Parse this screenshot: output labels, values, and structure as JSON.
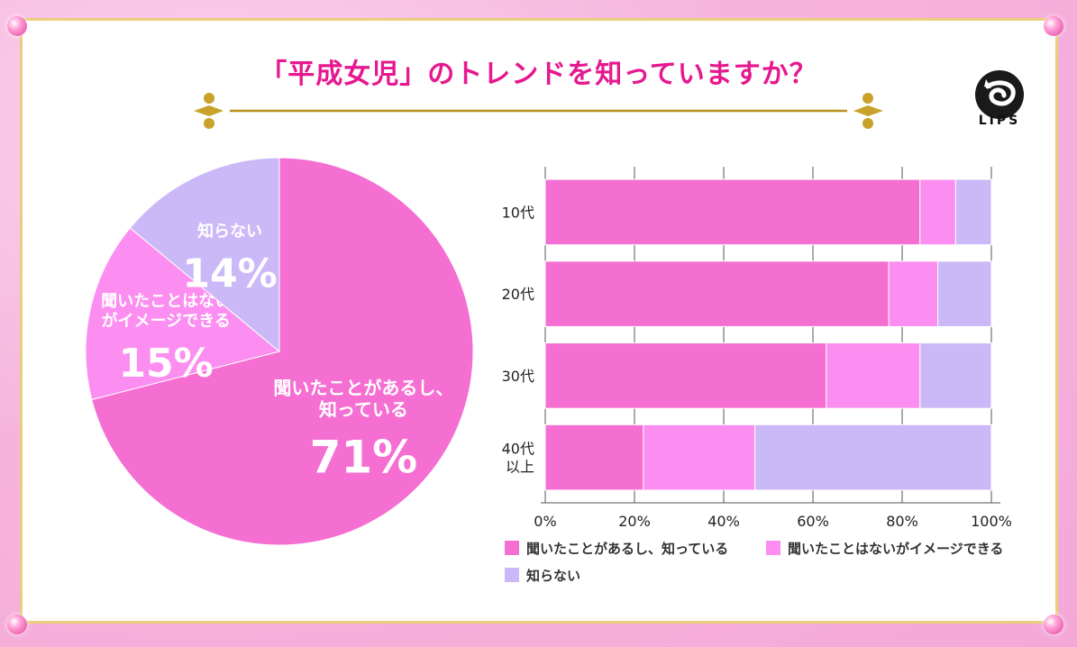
{
  "title": "「平成女児」のトレンドを知っていますか？",
  "logo_text": "LIPS",
  "colors": {
    "known": "#f56fd2",
    "image": "#fb8ef0",
    "unknown": "#cbb8f7",
    "title": "#e6188f",
    "frame": "#e9cf7a"
  },
  "chart_data": [
    {
      "type": "pie",
      "slices": [
        {
          "label_lines": [
            "聞いたことがあるし、",
            "知っている"
          ],
          "value": 71,
          "value_text": "71%",
          "color": "#f56fd2"
        },
        {
          "label_lines": [
            "聞いたことはない",
            "がイメージできる"
          ],
          "value": 15,
          "value_text": "15%",
          "color": "#fb8ef0"
        },
        {
          "label_lines": [
            "知らない"
          ],
          "value": 14,
          "value_text": "14%",
          "color": "#cbb8f7"
        }
      ]
    },
    {
      "type": "bar",
      "orientation": "horizontal",
      "stacked": true,
      "categories": [
        "10代",
        "20代",
        "30代",
        "40代\n以上"
      ],
      "series": [
        {
          "name": "聞いたことがあるし、知っている",
          "values": [
            84,
            77,
            63,
            22
          ],
          "color": "#f56fd2"
        },
        {
          "name": "聞いたことはないがイメージできる",
          "values": [
            8,
            11,
            21,
            25
          ],
          "color": "#fb8ef0"
        },
        {
          "name": "知らない",
          "values": [
            8,
            12,
            16,
            53
          ],
          "color": "#cbb8f7"
        }
      ],
      "xlim": [
        0,
        100
      ],
      "xticks": [
        "0%",
        "20%",
        "40%",
        "60%",
        "80%",
        "100%"
      ],
      "grid": true,
      "legend_position": "bottom"
    }
  ]
}
